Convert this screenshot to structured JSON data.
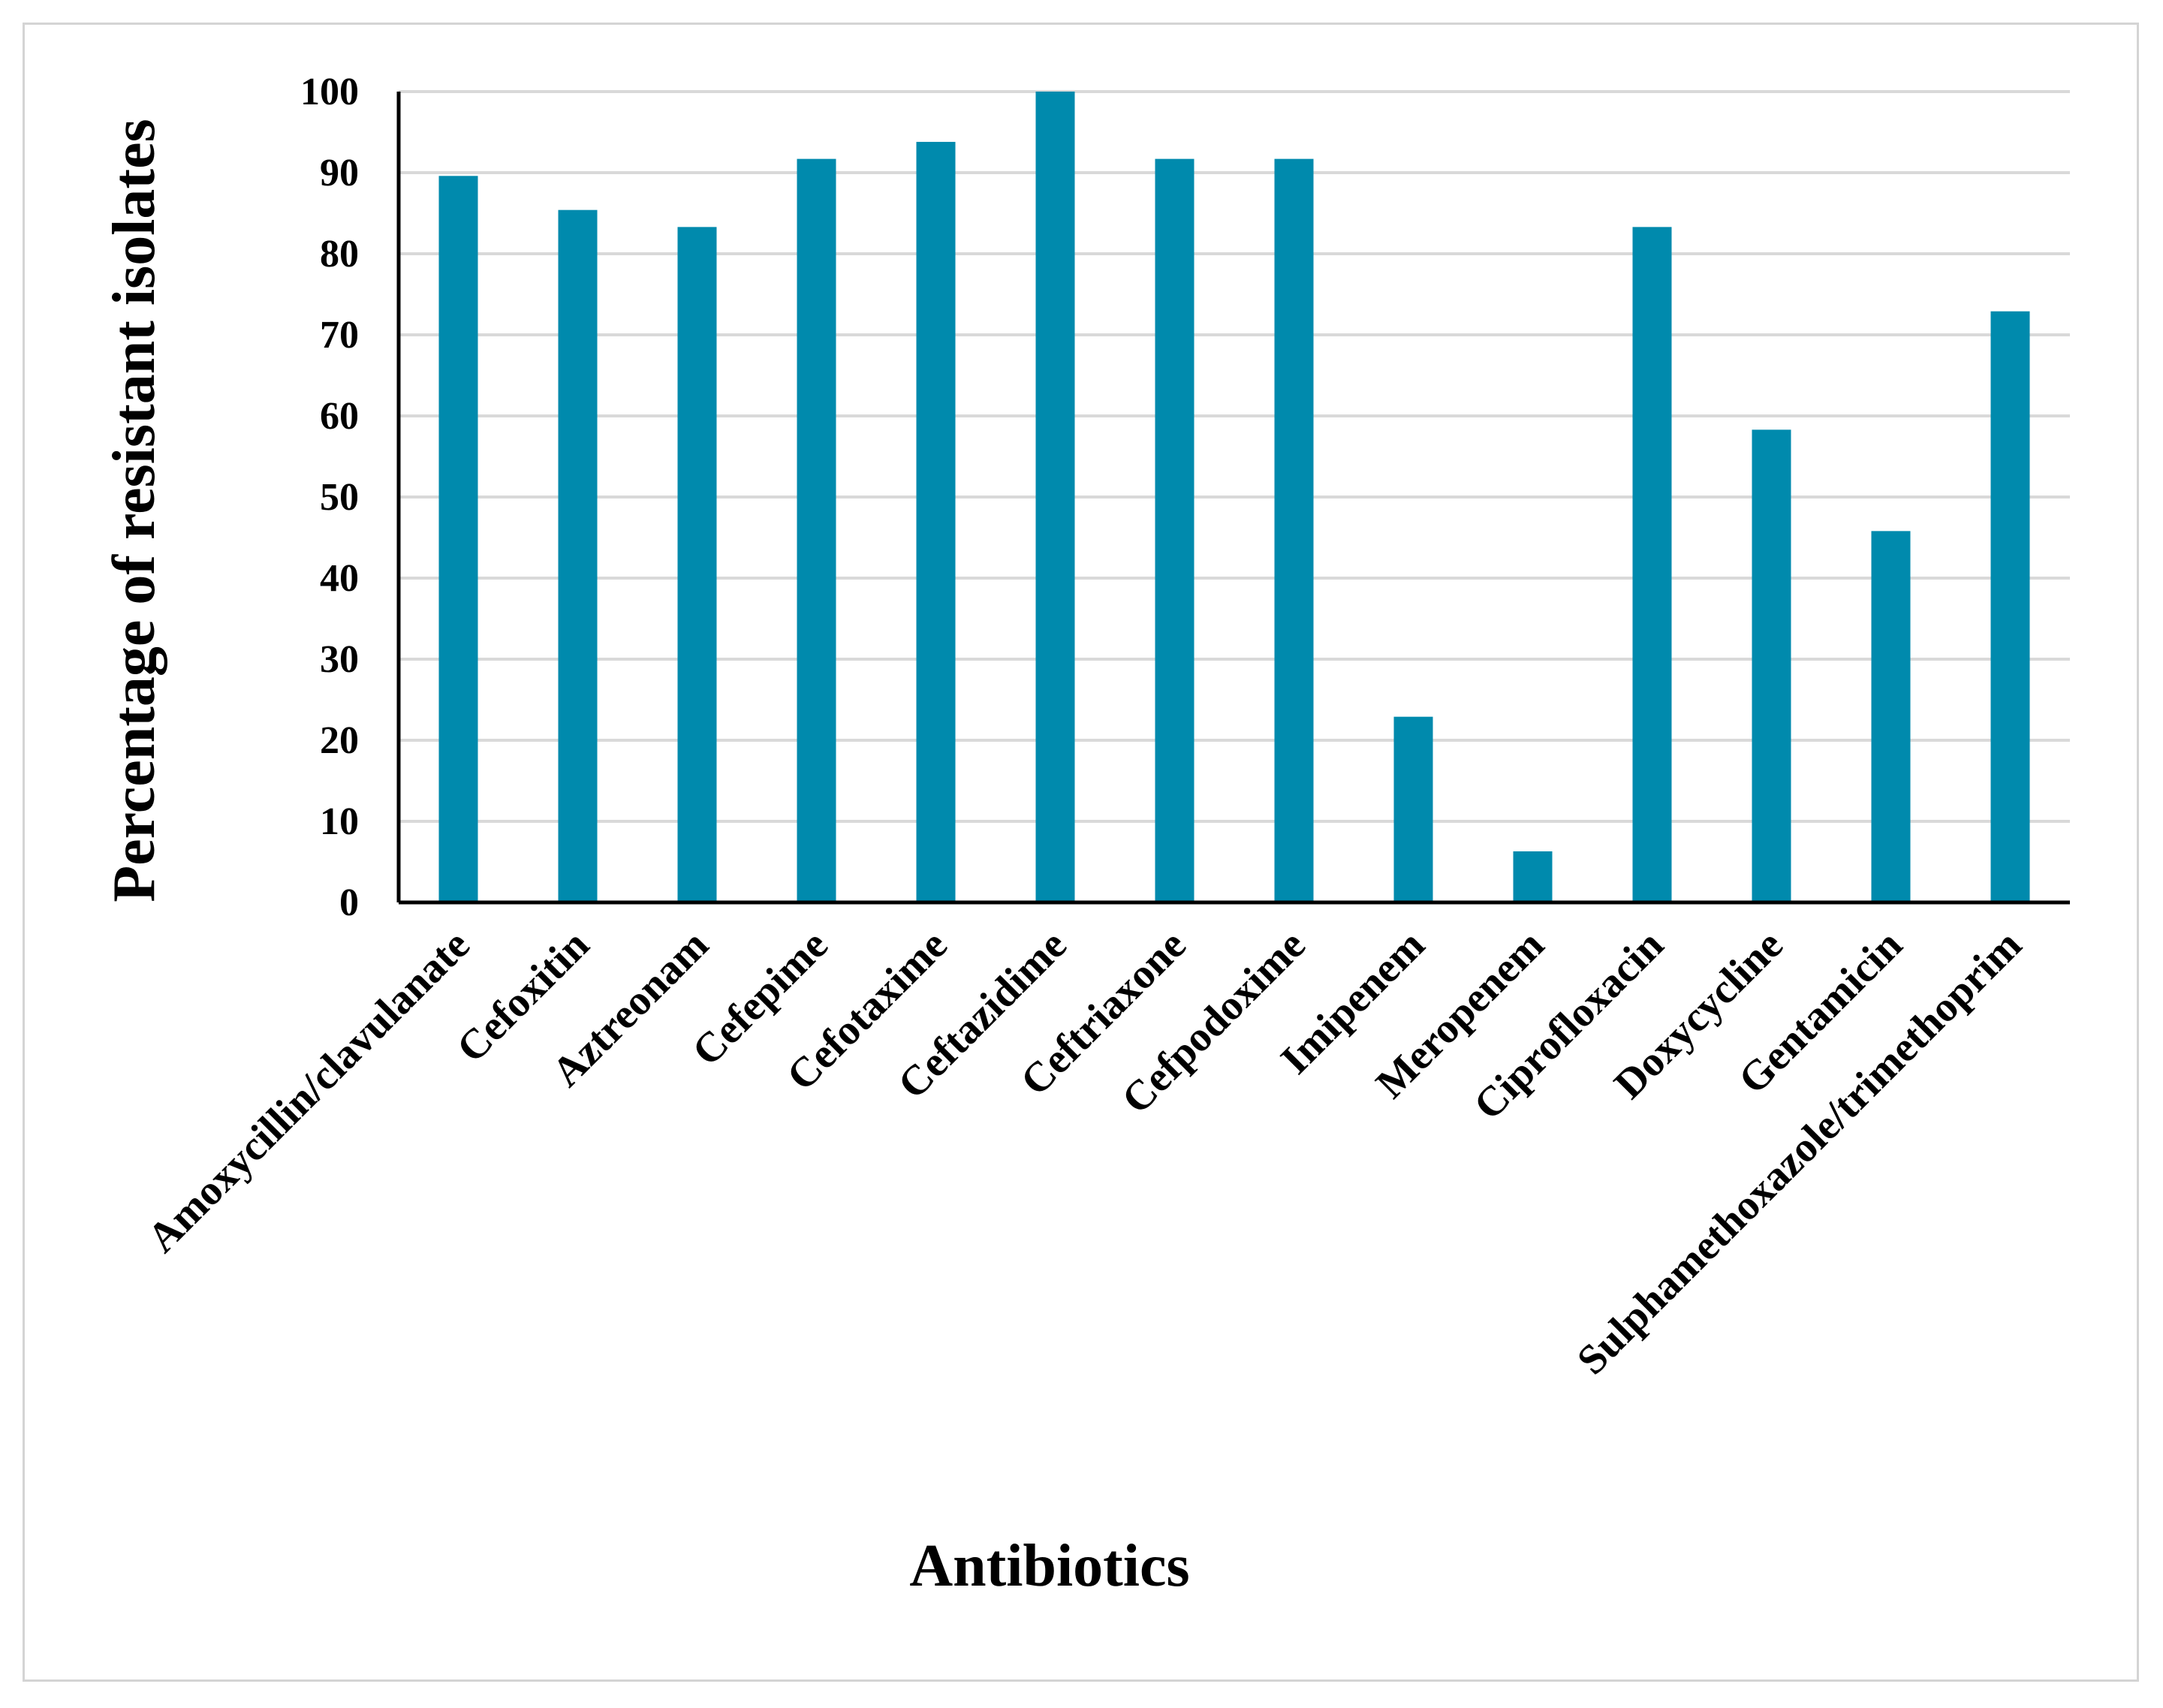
{
  "chart_data": {
    "type": "bar",
    "title": "",
    "xlabel": "Antibiotics",
    "ylabel": "Percentage of resistant isolates",
    "ylim": [
      0,
      100
    ],
    "yticks": [
      0,
      10,
      20,
      30,
      40,
      50,
      60,
      70,
      80,
      90,
      100
    ],
    "grid": true,
    "bar_color": "#008aad",
    "categories": [
      "Amoxycillin/clavulanate",
      "Cefoxitin",
      "Aztreonam",
      "Cefepime",
      "Cefotaxime",
      "Ceftazidime",
      "Ceftriaxone",
      "Cefpodoxime",
      "Imipenem",
      "Meropenem",
      "Ciprofloxacin",
      "Doxycycline",
      "Gentamicin",
      "Sulphamethoxazole/trimethoprim"
    ],
    "values": [
      89.6,
      85.4,
      83.3,
      91.7,
      93.8,
      100,
      91.7,
      91.7,
      22.9,
      6.3,
      83.3,
      58.3,
      45.8,
      72.9
    ]
  }
}
